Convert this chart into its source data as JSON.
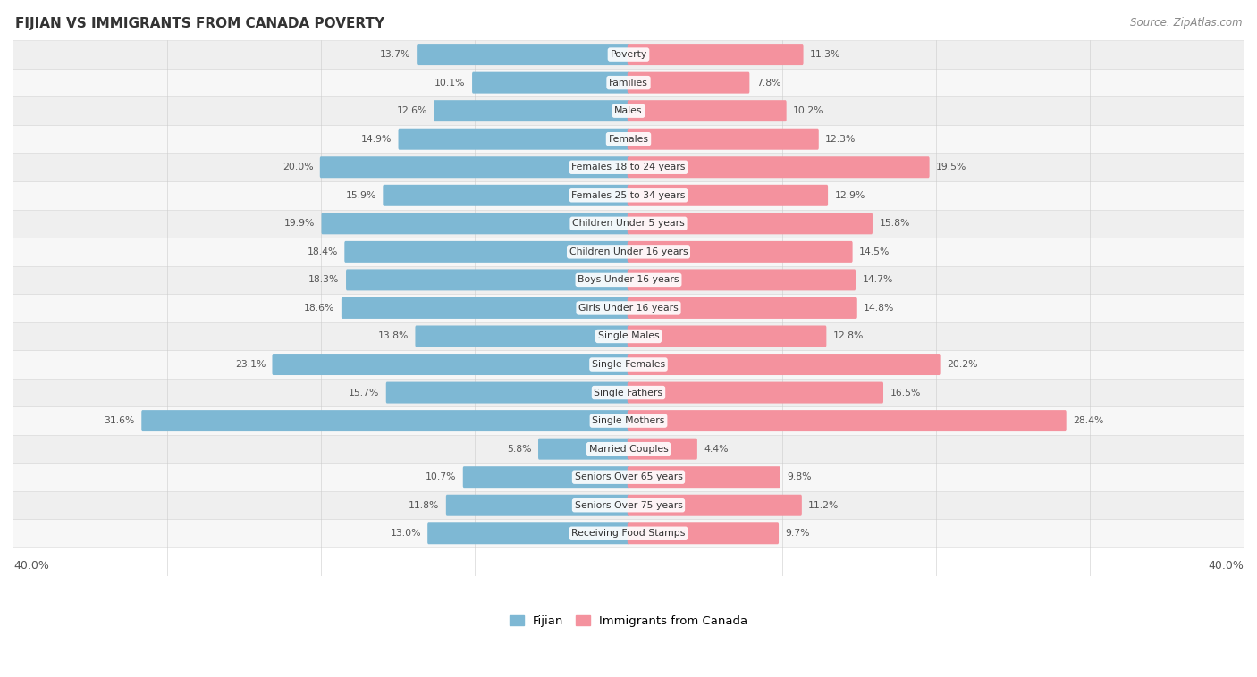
{
  "title": "FIJIAN VS IMMIGRANTS FROM CANADA POVERTY",
  "source": "Source: ZipAtlas.com",
  "categories": [
    "Poverty",
    "Families",
    "Males",
    "Females",
    "Females 18 to 24 years",
    "Females 25 to 34 years",
    "Children Under 5 years",
    "Children Under 16 years",
    "Boys Under 16 years",
    "Girls Under 16 years",
    "Single Males",
    "Single Females",
    "Single Fathers",
    "Single Mothers",
    "Married Couples",
    "Seniors Over 65 years",
    "Seniors Over 75 years",
    "Receiving Food Stamps"
  ],
  "fijian": [
    13.7,
    10.1,
    12.6,
    14.9,
    20.0,
    15.9,
    19.9,
    18.4,
    18.3,
    18.6,
    13.8,
    23.1,
    15.7,
    31.6,
    5.8,
    10.7,
    11.8,
    13.0
  ],
  "canada": [
    11.3,
    7.8,
    10.2,
    12.3,
    19.5,
    12.9,
    15.8,
    14.5,
    14.7,
    14.8,
    12.8,
    20.2,
    16.5,
    28.4,
    4.4,
    9.8,
    11.2,
    9.7
  ],
  "fijian_color": "#7eb8d4",
  "canada_color": "#f4929e",
  "x_max": 40.0,
  "legend_fijian": "Fijian",
  "legend_canada": "Immigrants from Canada"
}
